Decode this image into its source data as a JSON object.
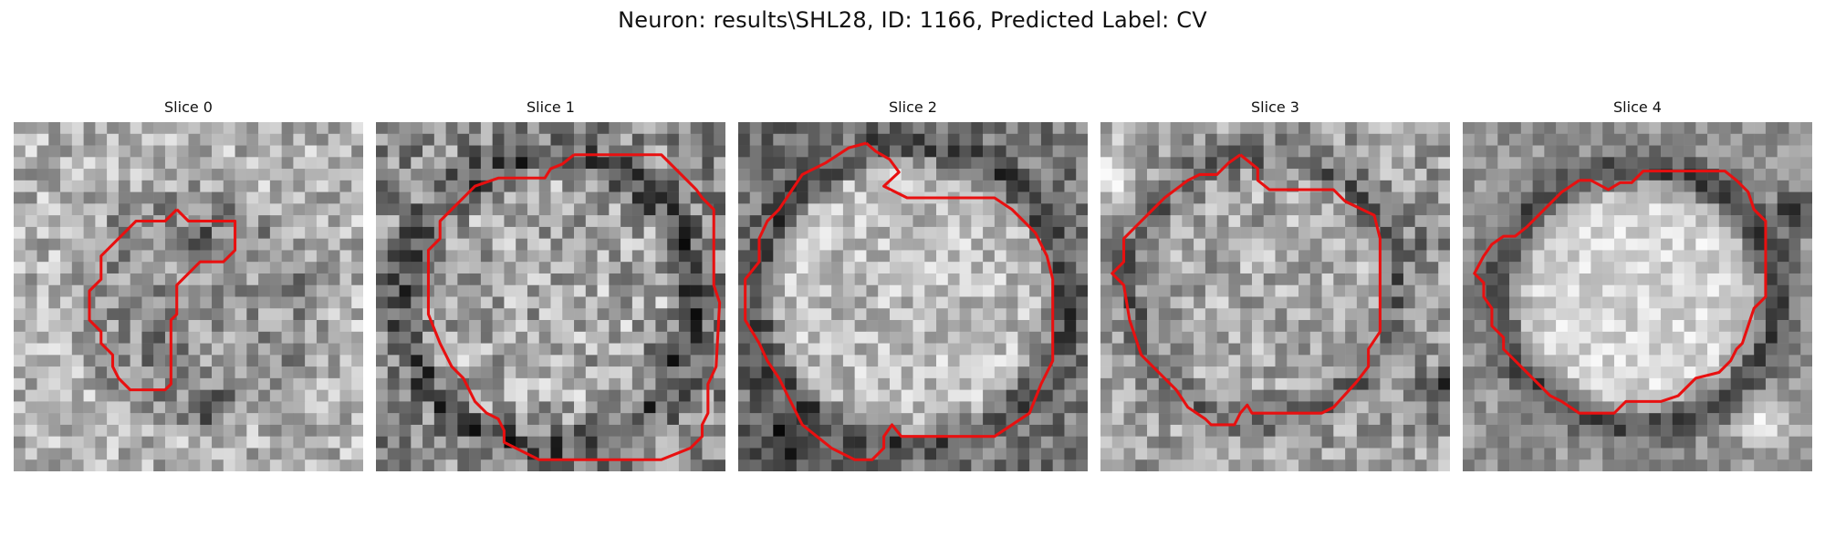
{
  "figure": {
    "title": "Neuron: results\\SHL28, ID: 1166, Predicted Label: CV"
  },
  "panels": [
    {
      "title": "Slice 0"
    },
    {
      "title": "Slice 1"
    },
    {
      "title": "Slice 2"
    },
    {
      "title": "Slice 3"
    },
    {
      "title": "Slice 4"
    }
  ],
  "colors": {
    "contour": "#e81010",
    "background": "#ffffff"
  }
}
